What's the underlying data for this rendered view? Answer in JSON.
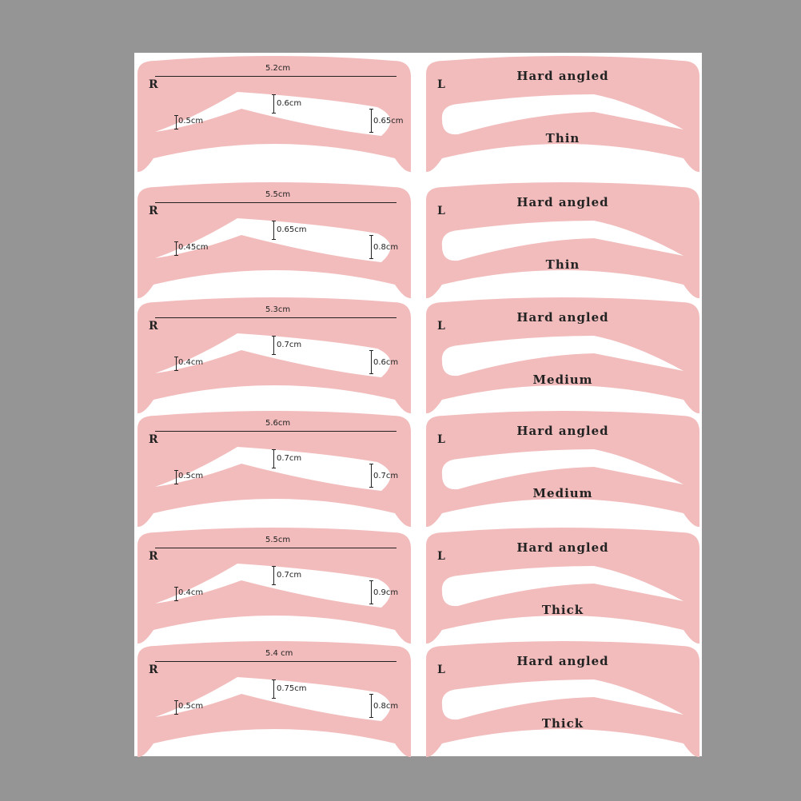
{
  "colors": {
    "background": "#959595",
    "sheet": "#ffffff",
    "stencil": "#f2bcbc",
    "text": "#222222"
  },
  "right_brows": [
    {
      "side": "R",
      "width": "5.2cm",
      "tail": "0.5cm",
      "middle": "0.6cm",
      "head": "0.65cm"
    },
    {
      "side": "R",
      "width": "5.5cm",
      "tail": "0.45cm",
      "middle": "0.65cm",
      "head": "0.8cm"
    },
    {
      "side": "R",
      "width": "5.3cm",
      "tail": "0.4cm",
      "middle": "0.7cm",
      "head": "0.6cm"
    },
    {
      "side": "R",
      "width": "5.6cm",
      "tail": "0.5cm",
      "middle": "0.7cm",
      "head": "0.7cm"
    },
    {
      "side": "R",
      "width": "5.5cm",
      "tail": "0.4cm",
      "middle": "0.7cm",
      "head": "0.9cm"
    },
    {
      "side": "R",
      "width": "5.4 cm",
      "tail": "0.5cm",
      "middle": "0.75cm",
      "head": "0.8cm"
    }
  ],
  "left_brows": [
    {
      "side": "L",
      "style": "Hard angled",
      "thickness": "Thin"
    },
    {
      "side": "L",
      "style": "Hard angled",
      "thickness": "Thin"
    },
    {
      "side": "L",
      "style": "Hard angled",
      "thickness": "Medium"
    },
    {
      "side": "L",
      "style": "Hard angled",
      "thickness": "Medium"
    },
    {
      "side": "L",
      "style": "Hard angled",
      "thickness": "Thick"
    },
    {
      "side": "L",
      "style": "Hard angled",
      "thickness": "Thick"
    }
  ]
}
